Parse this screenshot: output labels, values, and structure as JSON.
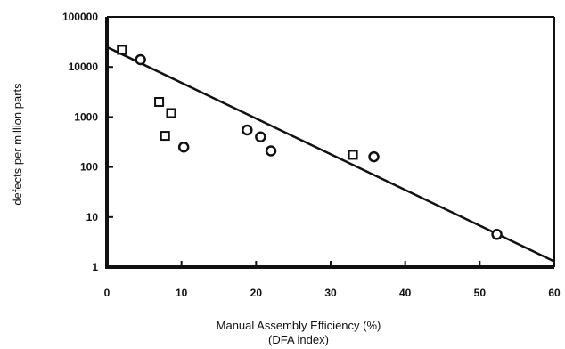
{
  "chart_data": {
    "type": "scatter",
    "xlabel": "Manual Assembly Efficiency (%)",
    "xlabel_sub": "(DFA index)",
    "ylabel": "defects per million parts",
    "xlim": [
      0,
      60
    ],
    "ylim": [
      1,
      100000
    ],
    "y_scale": "log",
    "x_ticks": [
      0,
      10,
      20,
      30,
      40,
      50,
      60
    ],
    "x_tick_labels": [
      "0",
      "10",
      "20",
      "30",
      "40",
      "50",
      "60"
    ],
    "y_ticks": [
      1,
      10,
      100,
      1000,
      10000,
      100000
    ],
    "y_tick_labels": [
      "1",
      "10",
      "100",
      "1000",
      "10000",
      "100000"
    ],
    "grid": false,
    "series": [
      {
        "marker": "square",
        "points": [
          {
            "x": 2,
            "y": 22000
          },
          {
            "x": 7,
            "y": 2000
          },
          {
            "x": 7.8,
            "y": 420
          },
          {
            "x": 8.6,
            "y": 1200
          },
          {
            "x": 33,
            "y": 175
          }
        ]
      },
      {
        "marker": "circle",
        "points": [
          {
            "x": 4.5,
            "y": 14000
          },
          {
            "x": 10.3,
            "y": 250
          },
          {
            "x": 18.8,
            "y": 550
          },
          {
            "x": 20.6,
            "y": 400
          },
          {
            "x": 22,
            "y": 210
          },
          {
            "x": 35.8,
            "y": 160
          },
          {
            "x": 52.3,
            "y": 4.5
          }
        ]
      }
    ],
    "trend_line": {
      "start": {
        "x": 0,
        "y": 25000
      },
      "end": {
        "x": 60,
        "y": 1.3
      }
    },
    "colors": {
      "ink": "#111111",
      "background": "#ffffff"
    }
  }
}
